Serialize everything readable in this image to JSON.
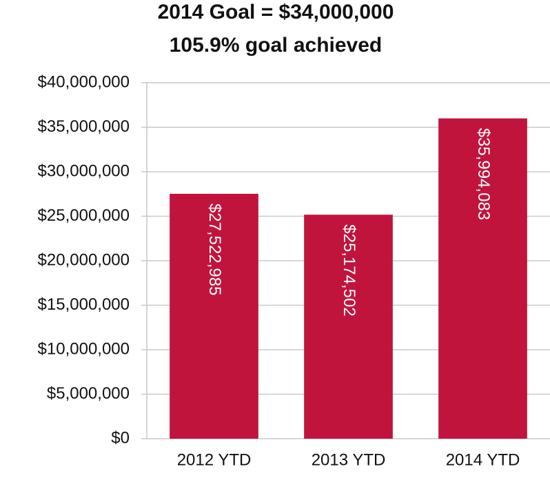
{
  "chart_data": {
    "type": "bar",
    "title": "2014 Goal = $34,000,000",
    "subtitle": "105.9% goal achieved",
    "categories": [
      "2012 YTD",
      "2013 YTD",
      "2014 YTD"
    ],
    "values": [
      27522985,
      25174502,
      35994083
    ],
    "value_labels": [
      "$27,522,985",
      "$25,174,502",
      "$35,994,083"
    ],
    "color": "#c0143c",
    "ylim": [
      0,
      40000000
    ],
    "yticks": [
      {
        "value": 0,
        "label": "$0"
      },
      {
        "value": 5000000,
        "label": "$5,000,000"
      },
      {
        "value": 10000000,
        "label": "$10,000,000"
      },
      {
        "value": 15000000,
        "label": "$15,000,000"
      },
      {
        "value": 20000000,
        "label": "$20,000,000"
      },
      {
        "value": 25000000,
        "label": "$25,000,000"
      },
      {
        "value": 30000000,
        "label": "$30,000,000"
      },
      {
        "value": 35000000,
        "label": "$35,000,000"
      },
      {
        "value": 40000000,
        "label": "$40,000,000"
      }
    ],
    "grid": true
  }
}
